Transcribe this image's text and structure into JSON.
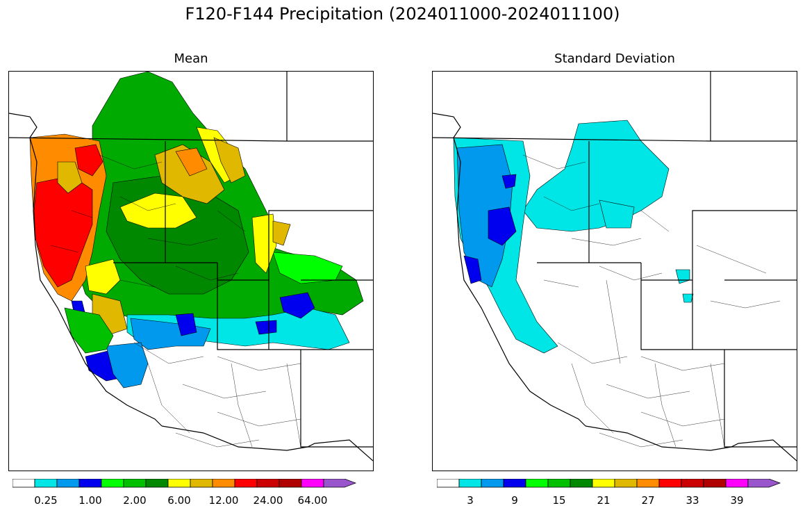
{
  "title": "F120-F144 Precipitation (2024011000-2024011100)",
  "panels": {
    "mean": {
      "title": "Mean",
      "colorbar_ticks": [
        "0.25",
        "1.00",
        "2.00",
        "6.00",
        "12.00",
        "24.00",
        "64.00"
      ]
    },
    "std": {
      "title": "Standard Deviation",
      "colorbar_ticks": [
        "3",
        "9",
        "15",
        "21",
        "27",
        "33",
        "39"
      ]
    }
  },
  "colorbar_colors": [
    "#ffffff",
    "#00e5e5",
    "#0099ee",
    "#0000ee",
    "#00ff00",
    "#00c000",
    "#008800",
    "#ffff00",
    "#e0b800",
    "#ff8c00",
    "#ff0000",
    "#cc0000",
    "#b00000",
    "#ff00ff",
    "#9955cc"
  ],
  "chart_data": [
    {
      "type": "heatmap",
      "title": "Mean",
      "colorbar_ticks": [
        0.25,
        1.0,
        2.0,
        6.0,
        12.0,
        24.0,
        64.0
      ],
      "legend": "bottom"
    },
    {
      "type": "heatmap",
      "title": "Standard Deviation",
      "colorbar_ticks": [
        3,
        9,
        15,
        21,
        27,
        33,
        39
      ],
      "legend": "bottom"
    }
  ]
}
